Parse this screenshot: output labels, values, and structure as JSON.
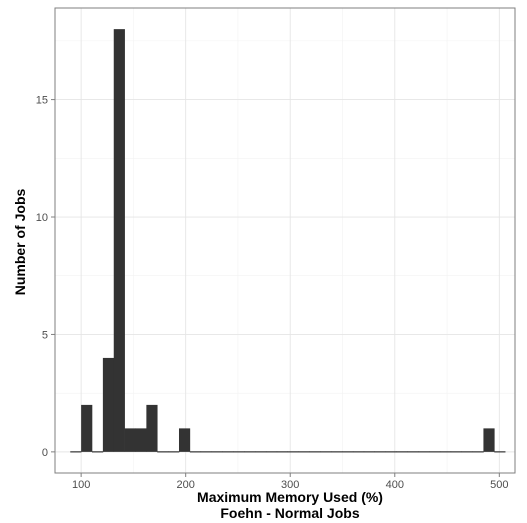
{
  "chart_data": {
    "type": "bar",
    "title": "",
    "xlabel": "Maximum Memory Used (%)",
    "xlabel2": "Foehn - Normal Jobs",
    "ylabel": "Number of Jobs",
    "xlim": [
      75,
      515
    ],
    "ylim": [
      -0.9,
      18.9
    ],
    "x_ticks": [
      100,
      200,
      300,
      400,
      500
    ],
    "y_ticks": [
      0,
      5,
      10,
      15
    ],
    "grid": true,
    "bin_width": 10.4,
    "bin_start": 89.6,
    "bin_counts": [
      0,
      2,
      0,
      4,
      18,
      1,
      1,
      2,
      0,
      0,
      1,
      0,
      0,
      0,
      0,
      0,
      0,
      0,
      0,
      0,
      0,
      0,
      0,
      0,
      0,
      0,
      0,
      0,
      0,
      0,
      0,
      0,
      0,
      0,
      0,
      0,
      0,
      0,
      1,
      0
    ],
    "bar_color": "#333333",
    "grid_color": "#e5e5e5",
    "panel_border_color": "#7f7f7f"
  }
}
